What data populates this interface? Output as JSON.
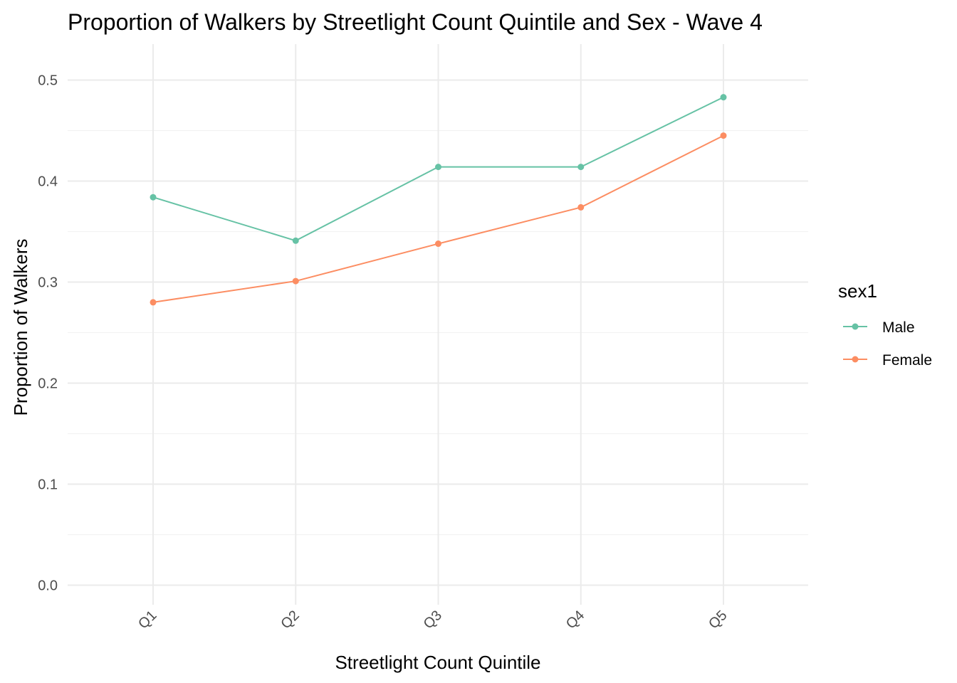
{
  "chart_data": {
    "type": "line",
    "title": "Proportion of Walkers by Streetlight Count Quintile and Sex - Wave 4",
    "xlabel": "Streetlight Count Quintile",
    "ylabel": "Proportion of Walkers",
    "categories": [
      "Q1",
      "Q2",
      "Q3",
      "Q4",
      "Q5"
    ],
    "y_ticks": [
      "0.0",
      "0.1",
      "0.2",
      "0.3",
      "0.4",
      "0.5"
    ],
    "ylim": [
      0.0,
      0.5
    ],
    "grid": true,
    "legend": {
      "title": "sex1",
      "position": "right"
    },
    "series": [
      {
        "name": "Male",
        "color": "#66c2a5",
        "values": [
          0.384,
          0.341,
          0.414,
          0.414,
          0.483
        ]
      },
      {
        "name": "Female",
        "color": "#fc8d62",
        "values": [
          0.28,
          0.301,
          0.338,
          0.374,
          0.445
        ]
      }
    ]
  }
}
